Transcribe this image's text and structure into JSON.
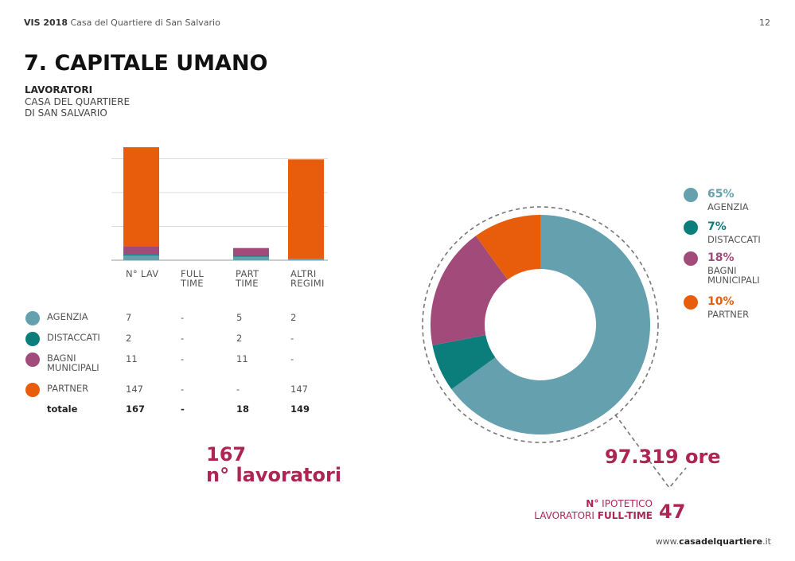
{
  "header": {
    "brand": "VIS 2018",
    "subtitle": "Casa del Quartiere di San Salvario",
    "page": "12"
  },
  "title": "7. CAPITALE UMANO",
  "section": {
    "heading": "LAVORATORI",
    "subheading": "CASA DEL QUARTIERE DI SAN SALVARIO"
  },
  "chart_data": [
    {
      "type": "bar",
      "stacked": true,
      "categories": [
        "N° LAV",
        "FULL TIME",
        "PART TIME",
        "ALTRI REGIMI"
      ],
      "series": [
        {
          "color": "#64a0ae",
          "values": [
            7,
            0,
            5,
            2
          ]
        },
        {
          "color": "#0b7d7b",
          "values": [
            2,
            0,
            2,
            0
          ]
        },
        {
          "color": "#a24a7a",
          "values": [
            11,
            0,
            11,
            0
          ]
        },
        {
          "color": "#e85d0c",
          "values": [
            147,
            0,
            0,
            147
          ]
        }
      ],
      "ylim": [
        0,
        167
      ],
      "gridlines": [
        0,
        50,
        100,
        150
      ]
    },
    {
      "type": "pie",
      "donut": true,
      "categories": [
        "AGENZIA",
        "DISTACCATI",
        "BAGNI MUNICIPALI",
        "PARTNER"
      ],
      "values": [
        65,
        7,
        18,
        10
      ],
      "value_labels": [
        "65%",
        "7%",
        "18%",
        "10%"
      ],
      "colors": [
        "#64a0ae",
        "#0b7d7b",
        "#a24a7a",
        "#e85d0c"
      ]
    }
  ],
  "table": {
    "rows": [
      {
        "label": "AGENZIA",
        "color": "#64a0ae",
        "cells": [
          "7",
          "-",
          "5",
          "2"
        ]
      },
      {
        "label": "DISTACCATI",
        "color": "#0b7d7b",
        "cells": [
          "2",
          "-",
          "2",
          "-"
        ]
      },
      {
        "label": "BAGNI MUNICIPALI",
        "color": "#a24a7a",
        "cells": [
          "11",
          "-",
          "11",
          "-"
        ]
      },
      {
        "label": "PARTNER",
        "color": "#e85d0c",
        "cells": [
          "147",
          "-",
          "-",
          "147"
        ]
      }
    ],
    "total": {
      "label": "totale",
      "cells": [
        "167",
        "-",
        "18",
        "149"
      ]
    }
  },
  "highlight": {
    "number": "167",
    "text": "n° lavoratori"
  },
  "hours": "97.319 ore",
  "fulltime": {
    "n": "N°",
    "ipotetico": "IPOTETICO",
    "lavoratori": "LAVORATORI",
    "fulltime": "FULL-TIME",
    "value": "47"
  },
  "footer": {
    "prefix": "www.",
    "site": "casadelquartiere",
    "suffix": ".it"
  }
}
